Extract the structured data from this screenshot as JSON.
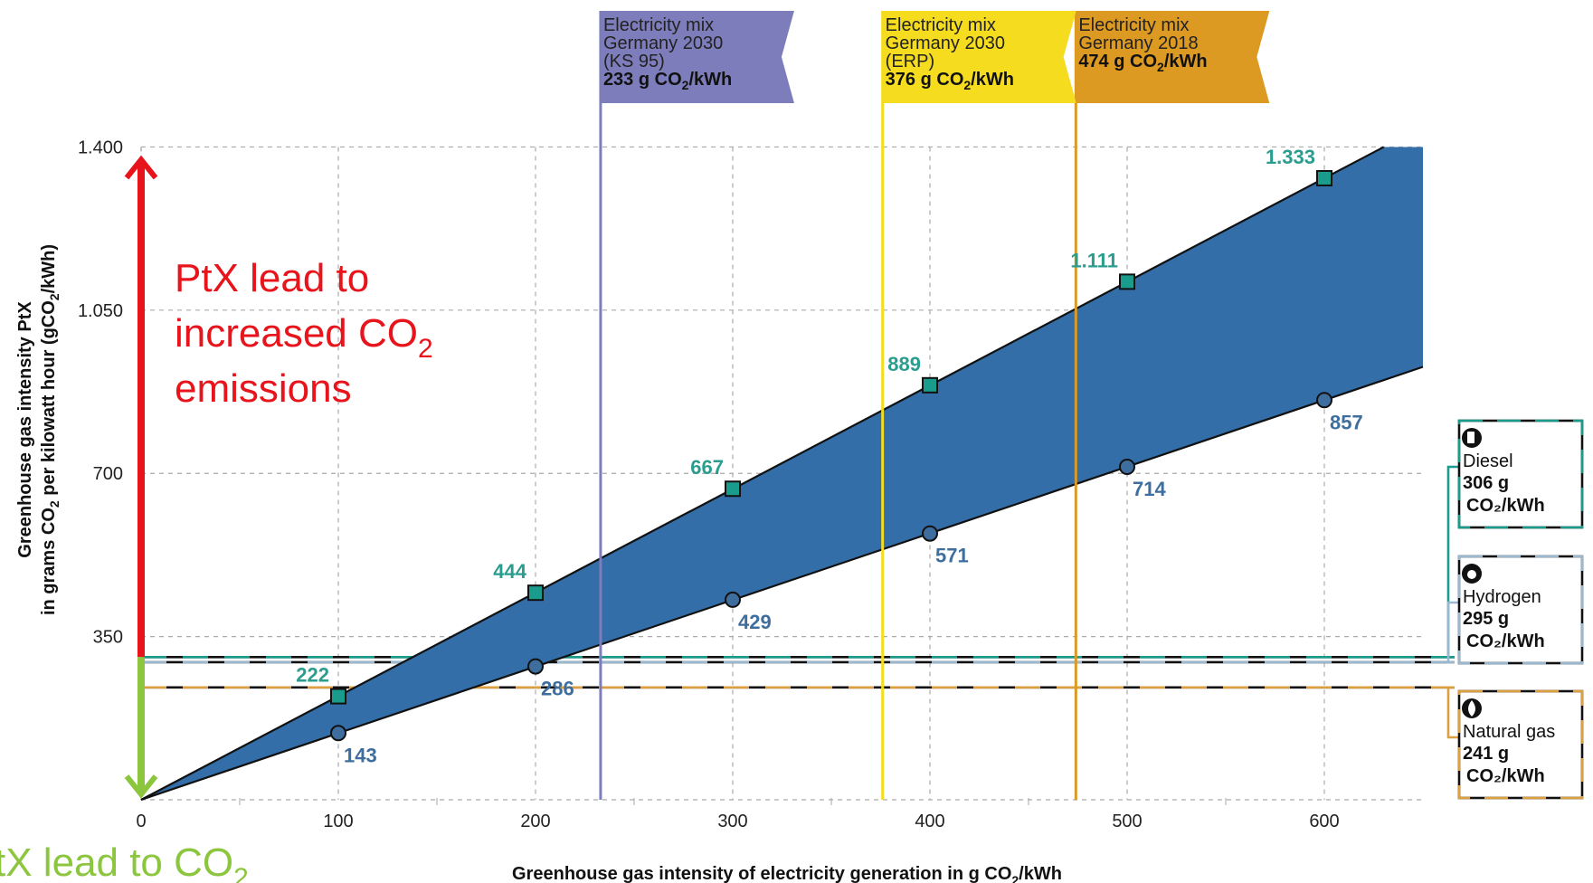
{
  "chart_data": {
    "type": "area",
    "xlabel": "Greenhouse gas intensity of electricity generation in g CO₂/kWh",
    "ylabel_line1": "Greenhouse gas intensity PtX",
    "ylabel_line2": "in grams CO₂ per kilowatt hour (gCO₂/kWh)",
    "xlim": [
      0,
      650
    ],
    "ylim": [
      0,
      1400
    ],
    "x_ticks": [
      0,
      100,
      200,
      300,
      400,
      500,
      600
    ],
    "x_tick_labels": [
      "0",
      "100",
      "200",
      "300",
      "400",
      "500",
      "600"
    ],
    "y_ticks": [
      350,
      700,
      1050,
      1400
    ],
    "y_tick_labels": [
      "350",
      "700",
      "1.050",
      "1.400"
    ],
    "grid": true,
    "upper_series": {
      "x": [
        100,
        200,
        300,
        400,
        500,
        600
      ],
      "values": [
        222,
        444,
        667,
        889,
        1111,
        1333
      ],
      "labels": [
        "222",
        "444",
        "667",
        "889",
        "1.111",
        "1.333"
      ],
      "color": "#1a9c8c"
    },
    "lower_series": {
      "x": [
        100,
        200,
        300,
        400,
        500,
        600
      ],
      "values": [
        143,
        286,
        429,
        571,
        714,
        857
      ],
      "labels": [
        "143",
        "286",
        "429",
        "571",
        "714",
        "857"
      ],
      "color": "#3e6e9e"
    },
    "band_color": "#336ea8",
    "electricity_mixes": [
      {
        "x": 233,
        "color": "#7d7dbc",
        "lines": [
          "Electricity mix",
          "Germany 2030",
          "(KS 95)"
        ],
        "value_num": "233",
        "value_unit": "g CO",
        "value_tail": "/kWh"
      },
      {
        "x": 376,
        "color": "#f5dc1e",
        "lines": [
          "Electricity mix",
          "Germany 2030",
          "(ERP)"
        ],
        "value_num": "376",
        "value_unit": "g CO",
        "value_tail": "/kWh"
      },
      {
        "x": 474,
        "color": "#dc9a22",
        "lines": [
          "Electricity mix",
          "Germany 2018"
        ],
        "value_num": "474",
        "value_unit": "g CO",
        "value_tail": "/kWh"
      }
    ],
    "references": [
      {
        "name": "Diesel",
        "value": 306,
        "value_label": "306 g",
        "unit": "CO₂/kWh",
        "color": "#1a9c8c",
        "icon": "fuel-pump-icon"
      },
      {
        "name": "Hydrogen",
        "value": 295,
        "value_label": "295 g",
        "unit": "CO₂/kWh",
        "color": "#9ab8d0",
        "icon": "hydrogen-icon"
      },
      {
        "name": "Natural gas",
        "value": 241,
        "value_label": "241 g",
        "unit": "CO₂/kWh",
        "color": "#dca040",
        "icon": "flame-icon"
      }
    ],
    "annotations": {
      "increase_line1": "PtX lead to",
      "increase_line2_a": "increased CO",
      "increase_line2_sub": "2",
      "increase_line3": "emissions",
      "increase_color": "#e8141c",
      "decrease_text_a": "tX lead to CO",
      "decrease_text_sub": "2",
      "decrease_color": "#8cc63e"
    }
  }
}
